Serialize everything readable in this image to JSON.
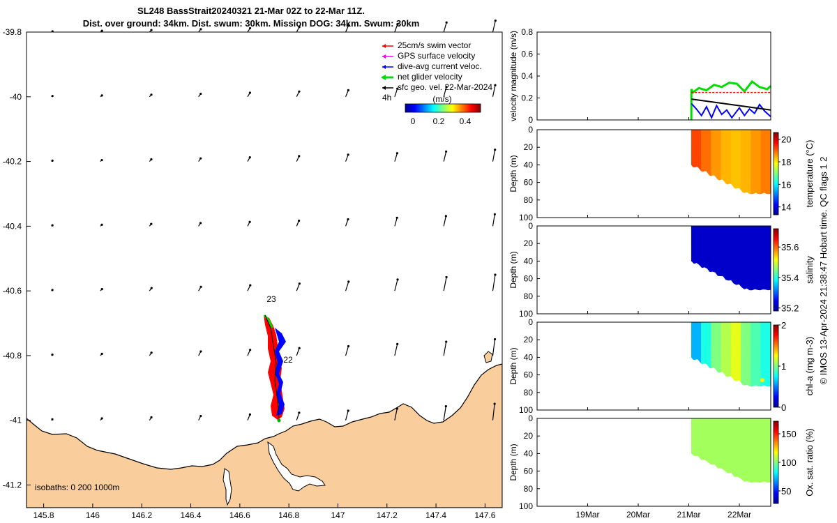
{
  "title_line1": "SL248 BassStrait20240321 21-Mar 02Z to 22-Mar 11Z.",
  "title_line2": "Dist. over ground: 34km. Dist. swum: 30km. Mission DOG: 34km. Swum: 30km",
  "map": {
    "lon_ticks": [
      "145.8",
      "146",
      "146.2",
      "146.4",
      "146.6",
      "146.8",
      "147",
      "147.2",
      "147.4",
      "147.6"
    ],
    "lat_ticks": [
      "-39.8",
      "-40",
      "-40.2",
      "-40.4",
      "-40.6",
      "-40.8",
      "-41",
      "-41.2"
    ],
    "lon_range": [
      145.73,
      147.67
    ],
    "lat_range": [
      -41.27,
      -39.8
    ],
    "legend": [
      {
        "label": "25cm/s swim vector",
        "color": "#ff0000"
      },
      {
        "label": "GPS surface velocity",
        "color": "#ff00ff"
      },
      {
        "label": "dive-avg current veloc.",
        "color": "#0000ff"
      },
      {
        "label": "net glider velocity",
        "color": "#00dd00"
      },
      {
        "label": "sfc geo. vel. 22-Mar-2024",
        "color": "#000000"
      }
    ],
    "legend_extra": "4h",
    "colorbar": {
      "unit": "(m/s)",
      "ticks": [
        "0",
        "0.2",
        "0.4"
      ],
      "range": [
        0,
        0.5
      ]
    },
    "day_labels": [
      {
        "text": "23",
        "lon": 146.72,
        "lat": -40.63
      },
      {
        "text": "22",
        "lon": 146.82,
        "lat": -40.81
      }
    ],
    "isobaths_text": "isobaths: 0   200  1000m",
    "land_color": "#f9cd9c",
    "track_color": "#ff0000",
    "current_color": "#0000ff"
  },
  "time_axis": {
    "ticks": [
      "19Mar",
      "20Mar",
      "21Mar",
      "22Mar"
    ],
    "range_days": [
      18.0,
      22.62
    ]
  },
  "panels": [
    {
      "ylabel": "velocity magnitude (m/s)",
      "yticks": [
        "0",
        "0.2",
        "0.4",
        "0.6",
        "0.8"
      ]
    },
    {
      "ylabel": "Depth (m)",
      "yticks": [
        "0",
        "20",
        "40",
        "60",
        "80",
        "100"
      ],
      "cblabel": "temperature (°C)",
      "cbticks": [
        "14",
        "16",
        "18",
        "20"
      ],
      "cbrange": [
        13.3,
        20.6
      ]
    },
    {
      "ylabel": "Depth (m)",
      "yticks": [
        "0",
        "20",
        "40",
        "60",
        "80",
        "100"
      ],
      "cblabel": "salinity",
      "cbticks": [
        "35.2",
        "35.4",
        "35.6"
      ],
      "cbrange": [
        35.18,
        35.72
      ]
    },
    {
      "ylabel": "Depth (m)",
      "yticks": [
        "0",
        "20",
        "40",
        "60",
        "80",
        "100"
      ],
      "cblabel": "chl-a (mg m-3)",
      "cbticks": [
        "0",
        "1",
        "2"
      ],
      "cbrange": [
        0,
        2
      ]
    },
    {
      "ylabel": "Depth (m)",
      "yticks": [
        "0",
        "20",
        "40",
        "60",
        "80",
        "100"
      ],
      "cblabel": "Ox. sat. ratio (%)",
      "cbticks": [
        "50",
        "100",
        "150"
      ],
      "cbrange": [
        28,
        172
      ]
    }
  ],
  "copyright": "© IMOS 13-Apr-2024 21:38:47 Hobart time. QC flags 1  2",
  "chart_data": [
    {
      "type": "line",
      "title": "velocity magnitude",
      "ylabel": "velocity magnitude (m/s)",
      "ylim": [
        0,
        0.8
      ],
      "x_unit": "day of March 2024",
      "series": [
        {
          "color": "#00dd00",
          "x": [
            21.05,
            21.08,
            21.2,
            21.35,
            21.5,
            21.65,
            21.8,
            21.95,
            22.1,
            22.25,
            22.4,
            22.55,
            22.62
          ],
          "values": [
            0.28,
            0.25,
            0.29,
            0.27,
            0.32,
            0.3,
            0.34,
            0.33,
            0.26,
            0.35,
            0.3,
            0.28,
            0.31
          ]
        },
        {
          "color": "#ff0000",
          "x": [
            21.05,
            21.3,
            21.6,
            21.9,
            22.2,
            22.5,
            22.62
          ],
          "values": [
            0.25,
            0.25,
            0.25,
            0.25,
            0.25,
            0.25,
            0.25
          ]
        },
        {
          "color": "#0000ff",
          "x": [
            21.05,
            21.15,
            21.25,
            21.35,
            21.45,
            21.55,
            21.65,
            21.75,
            21.85,
            22.0,
            22.1,
            22.2,
            22.3,
            22.4,
            22.5,
            22.62
          ],
          "values": [
            0.15,
            0.1,
            0.04,
            0.12,
            0.02,
            0.13,
            0.05,
            0.09,
            0.02,
            0.11,
            0.04,
            0.1,
            0.06,
            0.14,
            0.08,
            0.03
          ]
        },
        {
          "color": "#000000",
          "x": [
            21.05,
            22.62
          ],
          "values": [
            0.19,
            0.09
          ]
        }
      ]
    },
    {
      "type": "heatmap",
      "variable": "temperature",
      "data_start": 21.05,
      "data_end": 22.62,
      "max_depth": [
        40,
        73
      ],
      "values": [
        19.2,
        18.9,
        18.6,
        18.4,
        18.3,
        18.4,
        18.6,
        18.8
      ]
    },
    {
      "type": "heatmap",
      "variable": "salinity",
      "data_start": 21.05,
      "data_end": 22.62,
      "max_depth": [
        40,
        73
      ],
      "values": [
        35.22,
        35.22,
        35.22,
        35.22,
        35.22
      ]
    },
    {
      "type": "heatmap",
      "variable": "chl-a",
      "data_start": 21.05,
      "data_end": 22.62,
      "max_depth": [
        40,
        73
      ],
      "values": [
        0.6,
        0.8,
        1.0,
        1.1,
        1.2,
        1.0,
        0.9,
        0.8
      ]
    },
    {
      "type": "heatmap",
      "variable": "oxygen saturation",
      "data_start": 21.05,
      "data_end": 22.62,
      "max_depth": [
        40,
        73
      ],
      "values": [
        105,
        105,
        105,
        105
      ]
    }
  ]
}
